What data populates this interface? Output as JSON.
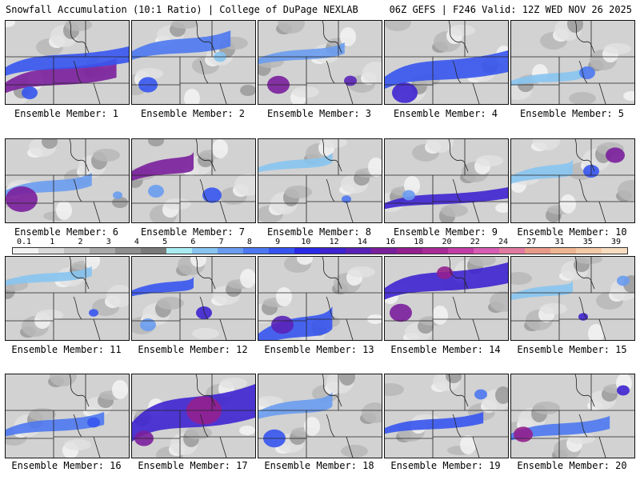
{
  "header": {
    "left_title": "Snowfall Accumulation (10:1 Ratio) | College of DuPage NEXLAB",
    "right_title": "06Z GEFS | F246 Valid: 12Z WED NOV 26 2025"
  },
  "scale": {
    "labels": [
      "0.1",
      "1",
      "2",
      "3",
      "4",
      "5",
      "6",
      "7",
      "8",
      "9",
      "10",
      "12",
      "14",
      "16",
      "18",
      "20",
      "22",
      "24",
      "27",
      "31",
      "35",
      "39"
    ],
    "colors": [
      "#f2f2f2",
      "#d9d9d9",
      "#c4c4c4",
      "#a9a9a9",
      "#8f8f8f",
      "#7a7a7a",
      "#a8ecf2",
      "#87c4f0",
      "#6a9cf0",
      "#4d78f0",
      "#3655f0",
      "#2a2ae8",
      "#3e24d0",
      "#5a23b8",
      "#7a1f9c",
      "#93208e",
      "#a82b96",
      "#c23ea6",
      "#d65cb4",
      "#e07aa0",
      "#e89a8a",
      "#efb592",
      "#f3caa6",
      "#f7dcc0"
    ]
  },
  "panels": [
    {
      "caption": "Ensemble Member: 1"
    },
    {
      "caption": "Ensemble Member: 2"
    },
    {
      "caption": "Ensemble Member: 3"
    },
    {
      "caption": "Ensemble Member: 4"
    },
    {
      "caption": "Ensemble Member: 5"
    },
    {
      "caption": "Ensemble Member: 6"
    },
    {
      "caption": "Ensemble Member: 7"
    },
    {
      "caption": "Ensemble Member: 8"
    },
    {
      "caption": "Ensemble Member: 9"
    },
    {
      "caption": "Ensemble Member: 10"
    },
    {
      "caption": "Ensemble Member: 11"
    },
    {
      "caption": "Ensemble Member: 12"
    },
    {
      "caption": "Ensemble Member: 13"
    },
    {
      "caption": "Ensemble Member: 14"
    },
    {
      "caption": "Ensemble Member: 15"
    },
    {
      "caption": "Ensemble Member: 16"
    },
    {
      "caption": "Ensemble Member: 17"
    },
    {
      "caption": "Ensemble Member: 18"
    },
    {
      "caption": "Ensemble Member: 19"
    },
    {
      "caption": "Ensemble Member: 20"
    }
  ]
}
